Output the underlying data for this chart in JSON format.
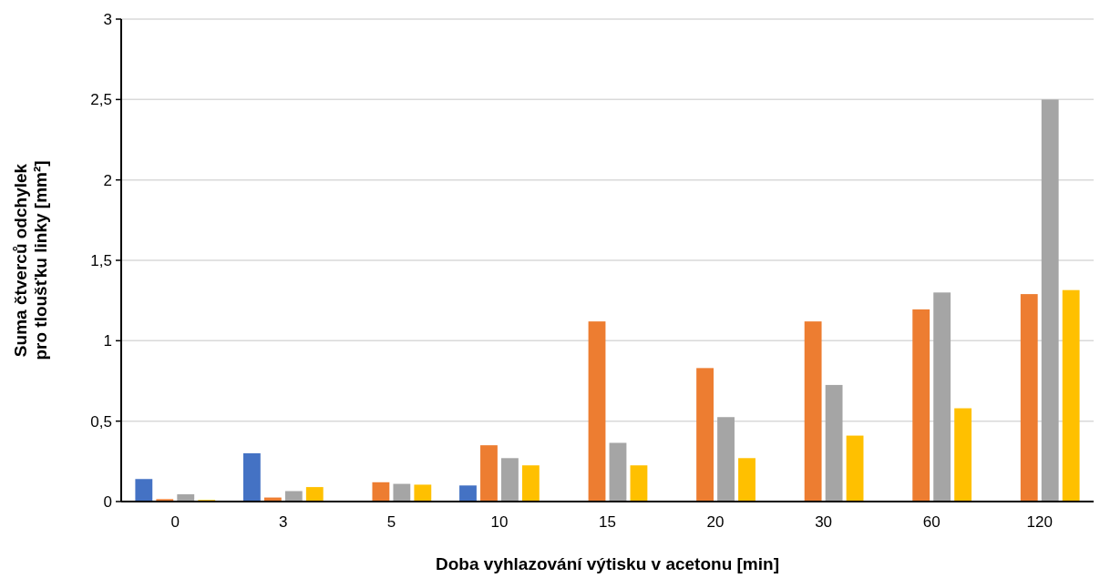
{
  "chart_data": {
    "type": "bar",
    "xlabel": "Doba vyhlazování výtisku v acetonu [min]",
    "ylabel": "Suma čtverců odchylek\npro tloušťku linky [mm²]",
    "categories": [
      "0",
      "3",
      "5",
      "10",
      "15",
      "20",
      "30",
      "60",
      "120"
    ],
    "series": [
      {
        "color": "#4472c4",
        "values": [
          0.14,
          0.3,
          null,
          0.1,
          null,
          null,
          null,
          null,
          null
        ]
      },
      {
        "color": "#ed7d31",
        "values": [
          0.015,
          0.025,
          0.12,
          0.35,
          1.12,
          0.83,
          1.12,
          1.195,
          1.29
        ]
      },
      {
        "color": "#a5a5a5",
        "values": [
          0.045,
          0.065,
          0.11,
          0.27,
          0.365,
          0.525,
          0.725,
          1.3,
          2.5
        ]
      },
      {
        "color": "#ffc000",
        "values": [
          0.01,
          0.09,
          0.105,
          0.225,
          0.225,
          0.27,
          0.41,
          0.58,
          1.315
        ]
      }
    ],
    "ylim": [
      0,
      3
    ],
    "yticks": [
      0,
      {
        "value": 0.5,
        "label": "0,5"
      },
      1,
      {
        "value": 1.5,
        "label": "1,5"
      },
      2,
      {
        "value": 2.5,
        "label": "2,5"
      },
      3
    ],
    "grid": "y"
  }
}
